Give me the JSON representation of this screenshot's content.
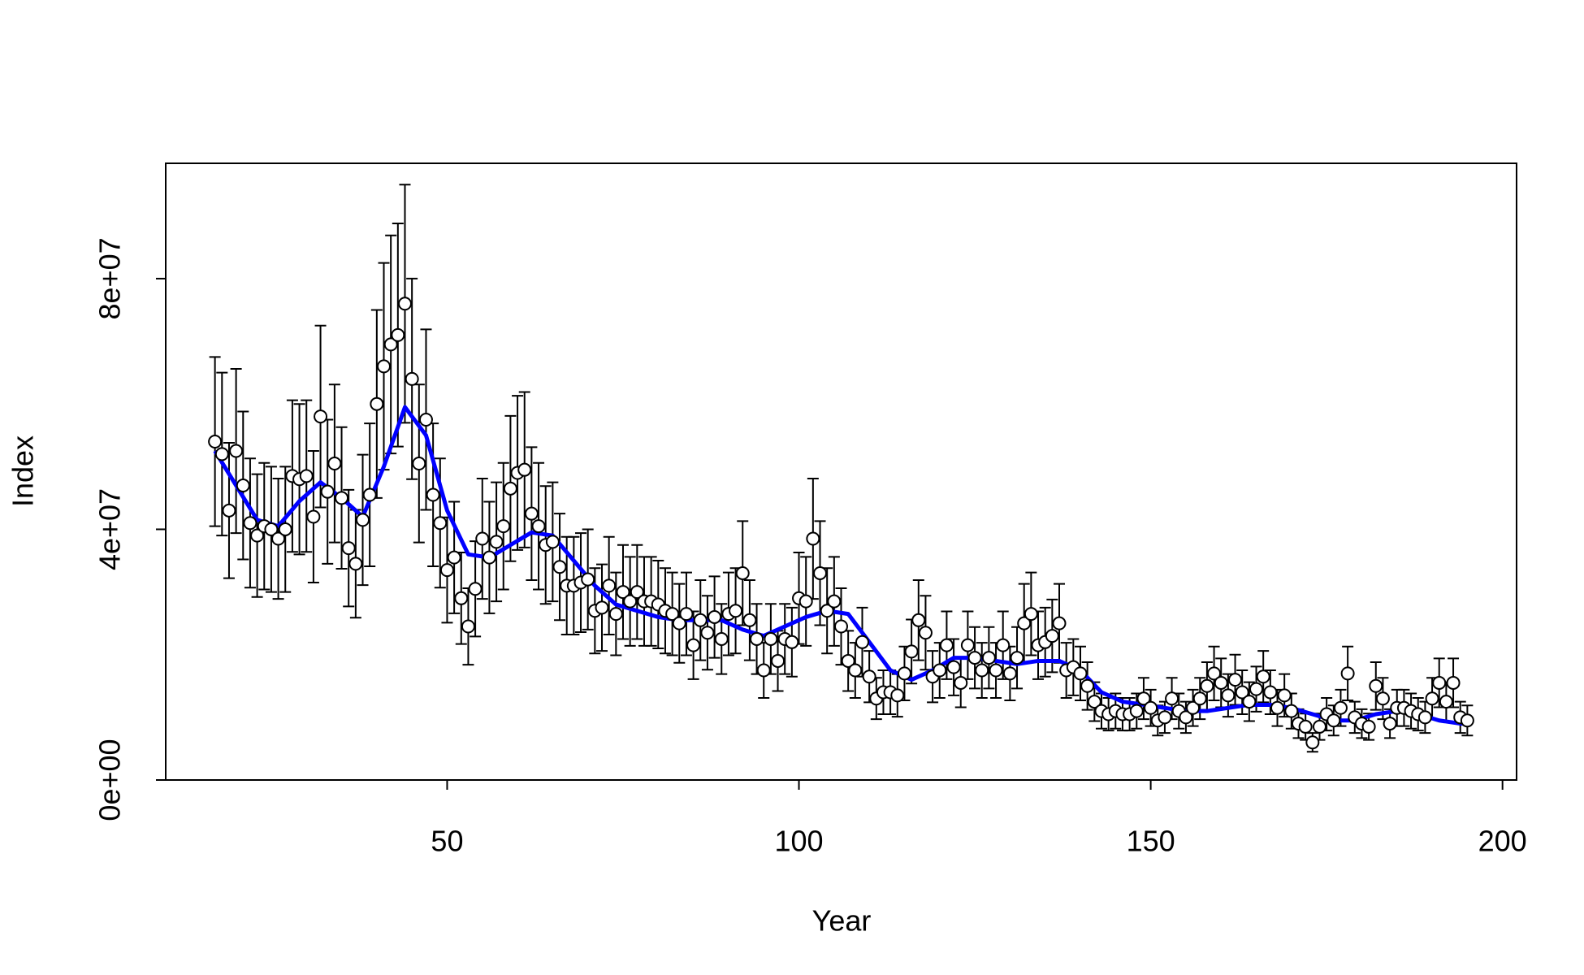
{
  "chart_data": {
    "type": "errorbar",
    "xlabel": "Year",
    "ylabel": "Index",
    "xlim": [
      10,
      202
    ],
    "ylim": [
      0,
      98400000
    ],
    "xticks": [
      50,
      100,
      150,
      200
    ],
    "yticks": [
      {
        "value": 0,
        "label": "0e+00"
      },
      {
        "value": 40000000,
        "label": "4e+07"
      },
      {
        "value": 80000000,
        "label": "8e+07"
      }
    ],
    "color": "#000000",
    "point_fill": "#ffffff",
    "x": [
      17,
      18,
      19,
      20,
      21,
      22,
      23,
      24,
      25,
      26,
      27,
      28,
      29,
      30,
      31,
      32,
      33,
      34,
      35,
      36,
      37,
      38,
      39,
      40,
      41,
      42,
      43,
      44,
      45,
      46,
      47,
      48,
      49,
      50,
      51,
      52,
      53,
      54,
      55,
      56,
      57,
      58,
      59,
      60,
      61,
      62,
      63,
      64,
      65,
      66,
      67,
      68,
      69,
      70,
      71,
      72,
      73,
      74,
      75,
      76,
      77,
      78,
      79,
      80,
      81,
      82,
      83,
      84,
      85,
      86,
      87,
      88,
      89,
      90,
      91,
      92,
      93,
      94,
      95,
      96,
      97,
      98,
      99,
      100,
      101,
      102,
      103,
      104,
      105,
      106,
      107,
      108,
      109,
      110,
      111,
      112,
      113,
      114,
      115,
      116,
      117,
      118,
      119,
      120,
      121,
      122,
      123,
      124,
      125,
      126,
      127,
      128,
      129,
      130,
      131,
      132,
      133,
      134,
      135,
      136,
      137,
      138,
      139,
      140,
      141,
      142,
      143,
      144,
      145,
      146,
      147,
      148,
      149,
      150,
      151,
      152,
      153,
      154,
      155,
      156,
      157,
      158,
      159,
      160,
      161,
      162,
      163,
      164,
      165,
      166,
      167,
      168,
      169,
      170,
      171,
      172,
      173,
      174,
      175,
      176,
      177,
      178,
      179,
      180,
      181,
      182,
      183,
      184,
      185,
      186,
      187,
      188,
      189,
      190,
      191,
      192,
      193,
      194,
      195
    ],
    "values": [
      54000000.0,
      52000000.0,
      43000000.0,
      52500000.0,
      47000000.0,
      41000000.0,
      39000000.0,
      40500000.0,
      40000000.0,
      38500000.0,
      40000000.0,
      48500000.0,
      48000000.0,
      48500000.0,
      42000000.0,
      58000000.0,
      46000000.0,
      50500000.0,
      45000000.0,
      37000000.0,
      34500000.0,
      41500000.0,
      45500000.0,
      60000000.0,
      66000000.0,
      69500000.0,
      71000000.0,
      76000000.0,
      64000000.0,
      50500000.0,
      57500000.0,
      45500000.0,
      41000000.0,
      33500000.0,
      35500000.0,
      29000000.0,
      24500000.0,
      30500000.0,
      38500000.0,
      35500000.0,
      38000000.0,
      40500000.0,
      46500000.0,
      49000000.0,
      49500000.0,
      42500000.0,
      40500000.0,
      37500000.0,
      38000000.0,
      34000000.0,
      31000000.0,
      31000000.0,
      31500000.0,
      32000000.0,
      27000000.0,
      27500000.0,
      31000000.0,
      26500000.0,
      30000000.0,
      28500000.0,
      30000000.0,
      28500000.0,
      28500000.0,
      28000000.0,
      27000000.0,
      26500000.0,
      25000000.0,
      26500000.0,
      21500000.0,
      25500000.0,
      23500000.0,
      26000000.0,
      22500000.0,
      26500000.0,
      27000000.0,
      33000000.0,
      25500000.0,
      22500000.0,
      17500000.0,
      22500000.0,
      19000000.0,
      22500000.0,
      22000000.0,
      29000000.0,
      28500000.0,
      38500000.0,
      33000000.0,
      27000000.0,
      28500000.0,
      24500000.0,
      19000000.0,
      17500000.0,
      22000000.0,
      16500000.0,
      13000000.0,
      14000000.0,
      14000000.0,
      13500000.0,
      17000000.0,
      20500000.0,
      25500000.0,
      23500000.0,
      16500000.0,
      17500000.0,
      21500000.0,
      18000000.0,
      15500000.0,
      21500000.0,
      19500000.0,
      17500000.0,
      19500000.0,
      17500000.0,
      21500000.0,
      17000000.0,
      19500000.0,
      25000000.0,
      26500000.0,
      21500000.0,
      22000000.0,
      23000000.0,
      25000000.0,
      17500000.0,
      18000000.0,
      17000000.0,
      15000000.0,
      12500000.0,
      11000000.0,
      10500000.0,
      11000000.0,
      10500000.0,
      10500000.0,
      11000000.0,
      13000000.0,
      11500000.0,
      9500000.0,
      10000000.0,
      13000000.0,
      11000000.0,
      10000000.0,
      11500000.0,
      13000000.0,
      15000000.0,
      17000000.0,
      15500000.0,
      13500000.0,
      16000000.0,
      14000000.0,
      12500000.0,
      14500000.0,
      16500000.0,
      14000000.0,
      11500000.0,
      13500000.0,
      11000000.0,
      9000000.0,
      8500000.0,
      6000000.0,
      8500000.0,
      10500000.0,
      9500000.0,
      11500000.0,
      17000000.0,
      10000000.0,
      9000000.0,
      8500000.0,
      15000000.0,
      13000000.0,
      9000000.0,
      11500000.0,
      11500000.0,
      11000000.0,
      10500000.0,
      10000000.0,
      13000000.0,
      15500000.0,
      12500000.0,
      15500000.0,
      10000000.0,
      9500000.0
    ],
    "errors": [
      13500000.0,
      13000000.0,
      10800000.0,
      13100000.0,
      11800000.0,
      10300000.0,
      9800000.0,
      10100000.0,
      10000000.0,
      9600000.0,
      10000000.0,
      12100000.0,
      12000000.0,
      12100000.0,
      10500000.0,
      14500000.0,
      11500000.0,
      12600000.0,
      11300000.0,
      9300000.0,
      8600000.0,
      10400000.0,
      11400000.0,
      15000000.0,
      16500000.0,
      17400000.0,
      17800000.0,
      19000000.0,
      16000000.0,
      12600000.0,
      14400000.0,
      11400000.0,
      10300000.0,
      8400000.0,
      8900000.0,
      7300000.0,
      6100000.0,
      7600000.0,
      9600000.0,
      8900000.0,
      9500000.0,
      10100000.0,
      11600000.0,
      12300000.0,
      12400000.0,
      10600000.0,
      10100000.0,
      9400000.0,
      9500000.0,
      8500000.0,
      7800000.0,
      7800000.0,
      7900000.0,
      8000000.0,
      6800000.0,
      6900000.0,
      7800000.0,
      6600000.0,
      7500000.0,
      7100000.0,
      7500000.0,
      7100000.0,
      7100000.0,
      7000000.0,
      6800000.0,
      6600000.0,
      6300000.0,
      6600000.0,
      5400000.0,
      6400000.0,
      5900000.0,
      6500000.0,
      5600000.0,
      6600000.0,
      6800000.0,
      8300000.0,
      6400000.0,
      5600000.0,
      4400000.0,
      5600000.0,
      4800000.0,
      5600000.0,
      5500000.0,
      7300000.0,
      7100000.0,
      9600000.0,
      8300000.0,
      6800000.0,
      7100000.0,
      6100000.0,
      4800000.0,
      4400000.0,
      5500000.0,
      4100000.0,
      3300000.0,
      3500000.0,
      3500000.0,
      3400000.0,
      4300000.0,
      5100000.0,
      6400000.0,
      5900000.0,
      4100000.0,
      4400000.0,
      5400000.0,
      4500000.0,
      3900000.0,
      5400000.0,
      4900000.0,
      4400000.0,
      4900000.0,
      4400000.0,
      5400000.0,
      4300000.0,
      4900000.0,
      6300000.0,
      6600000.0,
      5400000.0,
      5500000.0,
      5800000.0,
      6300000.0,
      4400000.0,
      4500000.0,
      4300000.0,
      3800000.0,
      3100000.0,
      2800000.0,
      2600000.0,
      2800000.0,
      2600000.0,
      2600000.0,
      2800000.0,
      3300000.0,
      2900000.0,
      2400000.0,
      2500000.0,
      3300000.0,
      2800000.0,
      2500000.0,
      2900000.0,
      3300000.0,
      3800000.0,
      4300000.0,
      3900000.0,
      3400000.0,
      4000000.0,
      3500000.0,
      3100000.0,
      3600000.0,
      4100000.0,
      3500000.0,
      2900000.0,
      3400000.0,
      2800000.0,
      2300000.0,
      2100000.0,
      1500000.0,
      2100000.0,
      2600000.0,
      2400000.0,
      2900000.0,
      4300000.0,
      2500000.0,
      2300000.0,
      2100000.0,
      3800000.0,
      3300000.0,
      2300000.0,
      2900000.0,
      2900000.0,
      2800000.0,
      2600000.0,
      2500000.0,
      3300000.0,
      3900000.0,
      3100000.0,
      3900000.0,
      2500000.0,
      2400000.0
    ],
    "smooth": {
      "color": "#0000ff",
      "x": [
        17,
        20,
        23,
        26,
        29,
        32,
        35,
        38,
        41,
        44,
        47,
        50,
        53,
        56,
        59,
        62,
        65,
        68,
        71,
        74,
        77,
        80,
        83,
        86,
        89,
        92,
        95,
        98,
        101,
        104,
        107,
        110,
        113,
        116,
        119,
        122,
        125,
        128,
        131,
        134,
        137,
        140,
        143,
        146,
        149,
        152,
        155,
        158,
        161,
        164,
        167,
        170,
        173,
        176,
        179,
        182,
        185,
        188,
        191,
        194,
        195
      ],
      "values": [
        52500000.0,
        47000000.0,
        41500000.0,
        40500000.0,
        44500000.0,
        47500000.0,
        45000000.0,
        42000000.0,
        50000000.0,
        59500000.0,
        55000000.0,
        43000000.0,
        36000000.0,
        35500000.0,
        37500000.0,
        39500000.0,
        39000000.0,
        35000000.0,
        31000000.0,
        28000000.0,
        27000000.0,
        26000000.0,
        25500000.0,
        25500000.0,
        25500000.0,
        24000000.0,
        23000000.0,
        24500000.0,
        26000000.0,
        27000000.0,
        26500000.0,
        22000000.0,
        17500000.0,
        16000000.0,
        17500000.0,
        19500000.0,
        19500000.0,
        19000000.0,
        18500000.0,
        19000000.0,
        19000000.0,
        17500000.0,
        14000000.0,
        12500000.0,
        12000000.0,
        11500000.0,
        11000000.0,
        11000000.0,
        11500000.0,
        12000000.0,
        12000000.0,
        11500000.0,
        10500000.0,
        9500000.0,
        9500000.0,
        10500000.0,
        11000000.0,
        10500000.0,
        9500000.0,
        9000000.0,
        9000000.0
      ]
    }
  }
}
